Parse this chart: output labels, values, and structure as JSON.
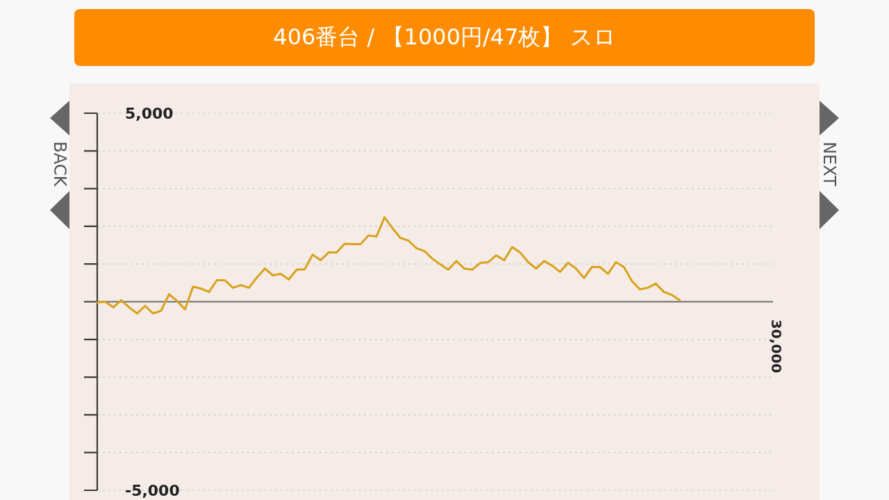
{
  "chart_data": {
    "type": "line",
    "title": "406番台 / 【1000円/47枚】 スロ",
    "annotations": [
      "BACK",
      "NEXT",
      "30,000"
    ],
    "categories": [
      null,
      null,
      null,
      null,
      null,
      null,
      null,
      null,
      null,
      null,
      null,
      null,
      null,
      null,
      null,
      null,
      null,
      null,
      null,
      null,
      null,
      null,
      null,
      null,
      null,
      null,
      null,
      null,
      null,
      null,
      null,
      null,
      null,
      null,
      null,
      null,
      null,
      null,
      null,
      null,
      null,
      null,
      null,
      null,
      null,
      null,
      null,
      null,
      null,
      null,
      null,
      null,
      null,
      null,
      null,
      null,
      null,
      null,
      null,
      null,
      null,
      null,
      null,
      null,
      null,
      null,
      null,
      null,
      null,
      null,
      null,
      null,
      null,
      null
    ],
    "ylim": [
      -5000,
      5000
    ],
    "yticks": [
      {
        "value": -5000,
        "label": "-5,000"
      },
      {
        "value": -4000,
        "label": null
      },
      {
        "value": -3000,
        "label": null
      },
      {
        "value": -2000,
        "label": null
      },
      {
        "value": -1000,
        "label": null
      },
      {
        "value": 0,
        "label": null
      },
      {
        "value": 1000,
        "label": null
      },
      {
        "value": 2000,
        "label": null
      },
      {
        "value": 3000,
        "label": null
      },
      {
        "value": 4000,
        "label": null
      },
      {
        "value": 5000,
        "label": "5,000"
      }
    ],
    "grid": "y",
    "marker": "none",
    "line_style": "solid",
    "ref_lines": [
      {
        "axis": "y",
        "value": 0,
        "color": "#6e6a68",
        "line_style": "solid"
      }
    ],
    "series": [
      {
        "color": "#d8a21a",
        "values": [
          -20,
          0,
          -150,
          40,
          -150,
          -310,
          -110,
          -310,
          -240,
          200,
          20,
          -200,
          400,
          350,
          260,
          570,
          570,
          370,
          440,
          370,
          640,
          880,
          700,
          740,
          590,
          850,
          860,
          1250,
          1100,
          1310,
          1310,
          1540,
          1530,
          1530,
          1760,
          1730,
          2240,
          1950,
          1690,
          1620,
          1420,
          1340,
          1140,
          990,
          850,
          1080,
          880,
          850,
          1030,
          1050,
          1230,
          1100,
          1450,
          1310,
          1050,
          880,
          1080,
          960,
          790,
          1030,
          880,
          630,
          920,
          920,
          740,
          1050,
          920,
          550,
          330,
          370,
          480,
          260,
          180,
          40
        ]
      }
    ]
  }
}
